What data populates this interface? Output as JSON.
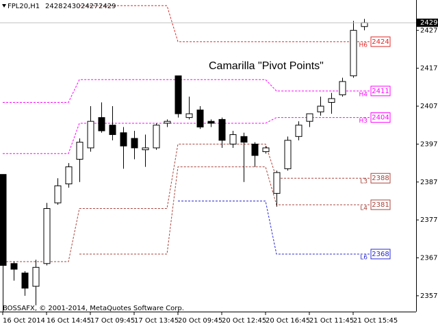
{
  "chart_data": {
    "type": "candlestick",
    "symbol": "FPL20,H1",
    "title": "Camarilla \"Pivot Points\"",
    "footer": "BOSSAFX, © 2001-2014, MetaQuotes Software Corp.",
    "categories": [
      "16 Oct 2014",
      null,
      null,
      null,
      "16 Oct 14:45",
      null,
      null,
      null,
      "17 Oct 09:45",
      null,
      null,
      null,
      "17 Oct 13:45",
      null,
      null,
      null,
      "20 Oct 09:45",
      null,
      null,
      null,
      "20 Oct 12:45",
      null,
      null,
      null,
      "20 Oct 16:45",
      null,
      null,
      null,
      "21 Oct 11:45",
      null,
      null,
      null,
      "21 Oct 15:45",
      null
    ],
    "open": [
      2389,
      2365.5,
      2363,
      2359.5,
      2365.5,
      2381.5,
      2386.5,
      2393,
      2396,
      2404,
      2402,
      2400,
      2398.5,
      2395.5,
      2396,
      2402.5,
      2415,
      2404,
      2406,
      2403,
      2403.5,
      2397,
      2399,
      2397,
      2395,
      2384,
      2390.5,
      2399,
      2403,
      2405.5,
      2408,
      2410,
      2415,
      2428
    ],
    "high": [
      2389,
      2366,
      2363.5,
      2366.5,
      2381.5,
      2388,
      2392,
      2398.5,
      2407,
      2408,
      2407,
      2401.5,
      2400.5,
      2399.5,
      2402.5,
      2403.5,
      2415,
      2409.5,
      2407,
      2403.5,
      2404,
      2400.5,
      2400,
      2397.5,
      2396.5,
      2390,
      2399,
      2403,
      2405,
      2409.5,
      2410.5,
      2414.5,
      2429.5,
      2430
    ],
    "low": [
      2352,
      2361,
      2357,
      2354.5,
      2365,
      2381,
      2385.5,
      2387,
      2395,
      2400,
      2398,
      2390.5,
      2393,
      2391,
      2395.5,
      2401.5,
      2404,
      2403.5,
      2401,
      2401.5,
      2396,
      2396,
      2387,
      2391,
      2394.5,
      2380.5,
      2390,
      2398,
      2401.5,
      2404.5,
      2405,
      2409.5,
      2414.5,
      2427
    ],
    "close": [
      2365,
      2364,
      2359,
      2364.5,
      2380,
      2386,
      2391,
      2397.5,
      2403,
      2400.5,
      2399.5,
      2396.5,
      2396,
      2396,
      2402,
      2403,
      2405,
      2405,
      2401.5,
      2402.5,
      2398,
      2399.5,
      2397.5,
      2394,
      2396,
      2389.5,
      2398,
      2402,
      2405,
      2407,
      2409,
      2413.5,
      2427,
      2429
    ],
    "levels": [
      {
        "name": "H6",
        "color": "#e02828",
        "values": [
          null,
          null,
          null,
          null,
          null,
          null,
          null,
          2433.5,
          2433.5,
          2433.5,
          2433.5,
          2433.5,
          2433.5,
          2433.5,
          2433.5,
          2433.5,
          2424,
          2424,
          2424,
          2424,
          2424,
          2424,
          2424,
          2424,
          2424,
          2424,
          2424,
          2424,
          2424,
          2424,
          2424,
          2424,
          2424,
          2424
        ]
      },
      {
        "name": "H4",
        "color": "#ff00ff",
        "values": [
          2408,
          2408,
          2408,
          2408,
          2408,
          2408,
          2408,
          2414,
          2414,
          2414,
          2414,
          2414,
          2414,
          2414,
          2414,
          2414,
          2414,
          2414,
          2414,
          2414,
          2414,
          2414,
          2414,
          2414,
          2414,
          2411,
          2411,
          2411,
          2411,
          2411,
          2411,
          2411,
          2411,
          2411
        ]
      },
      {
        "name": "H3",
        "color": "#ff00ff",
        "values": [
          2394.5,
          2394.5,
          2394.5,
          2394.5,
          2394.5,
          2394.5,
          2394.5,
          2402.5,
          2402.5,
          2402.5,
          2402.5,
          2402.5,
          2402.5,
          2402.5,
          2402.5,
          2402.5,
          2402.5,
          2402.5,
          2402.5,
          2402.5,
          2402.5,
          2402.5,
          2402.5,
          2402.5,
          2402.5,
          2404,
          2404,
          2404,
          2404,
          2404,
          2404,
          2404,
          2404,
          2404
        ]
      },
      {
        "name": "L3",
        "color": "#a8443c",
        "values": [
          2366,
          2366,
          2366,
          2366,
          2366,
          2366,
          2366,
          2380,
          2380,
          2380,
          2380,
          2380,
          2380,
          2380,
          2380,
          2380,
          2397,
          2397,
          2397,
          2397,
          2397,
          2397,
          2397,
          2397,
          2397,
          2388,
          2388,
          2388,
          2388,
          2388,
          2388,
          2388,
          2388,
          2388
        ]
      },
      {
        "name": "L4",
        "color": "#a8443c",
        "values": [
          null,
          null,
          null,
          null,
          null,
          null,
          null,
          2368,
          2368,
          2368,
          2368,
          2368,
          2368,
          2368,
          2368,
          2368,
          2391,
          2391,
          2391,
          2391,
          2391,
          2391,
          2391,
          2391,
          2391,
          2381,
          2381,
          2381,
          2381,
          2381,
          2381,
          2381,
          2381,
          2381
        ]
      },
      {
        "name": "L6",
        "color": "#2828d0",
        "values": [
          null,
          null,
          null,
          null,
          null,
          null,
          null,
          null,
          null,
          null,
          null,
          null,
          null,
          null,
          null,
          null,
          2382,
          2382,
          2382,
          2382,
          2382,
          2382,
          2382,
          2382,
          2382,
          2368,
          2368,
          2368,
          2368,
          2368,
          2368,
          2368,
          2368,
          2368
        ]
      }
    ],
    "ylim": [
      2353,
      2435
    ],
    "yticks": [
      2357,
      2367,
      2377,
      2387,
      2397,
      2407,
      2417,
      2427
    ]
  }
}
